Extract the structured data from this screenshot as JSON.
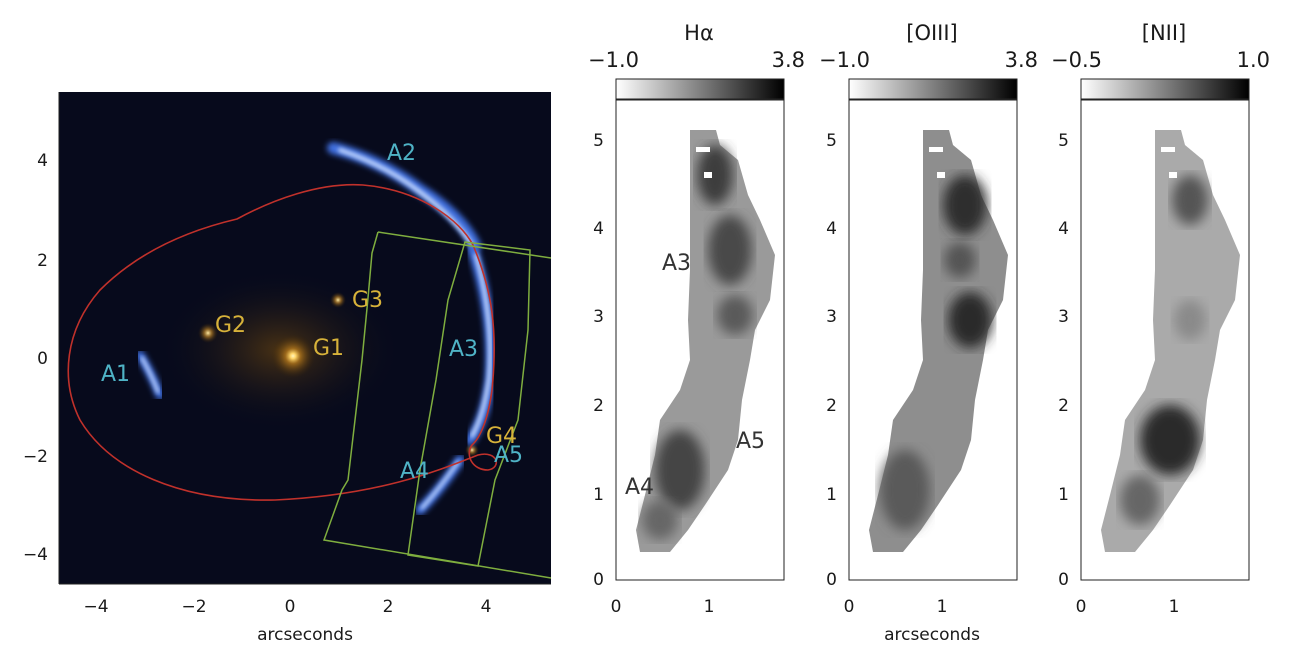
{
  "figure": {
    "left_panel": {
      "xticks": [
        "−4",
        "−2",
        "0",
        "2",
        "4"
      ],
      "yticks": [
        "4",
        "2",
        "0",
        "−2",
        "−4"
      ],
      "xlabel": "arcseconds",
      "labels": {
        "A1": "A1",
        "A2": "A2",
        "A3": "A3",
        "A4": "A4",
        "A5": "A5",
        "G1": "G1",
        "G2": "G2",
        "G3": "G3",
        "G4": "G4"
      },
      "colors": {
        "image_labels": "#4fb3c6",
        "galaxy_labels": "#d7b23a",
        "critical_curve": "#c0312b",
        "slit": "#7fae3f"
      }
    },
    "maps": [
      {
        "title": "Hα",
        "cbar_min": "−1.0",
        "cbar_max": "3.8",
        "xticks": [
          "0",
          "1"
        ],
        "yticks": [
          "0",
          "1",
          "2",
          "3",
          "4",
          "5"
        ],
        "labels": [
          "A3",
          "A5",
          "A4"
        ]
      },
      {
        "title": "[OIII]",
        "cbar_min": "−1.0",
        "cbar_max": "3.8",
        "xticks": [
          "0",
          "1"
        ],
        "yticks": [
          "0",
          "1",
          "2",
          "3",
          "4",
          "5"
        ],
        "xlabel": "arcseconds"
      },
      {
        "title": "[NII]",
        "cbar_min": "−0.5",
        "cbar_max": "1.0",
        "xticks": [
          "0",
          "1"
        ],
        "yticks": [
          "0",
          "1",
          "2",
          "3",
          "4",
          "5"
        ]
      }
    ]
  }
}
